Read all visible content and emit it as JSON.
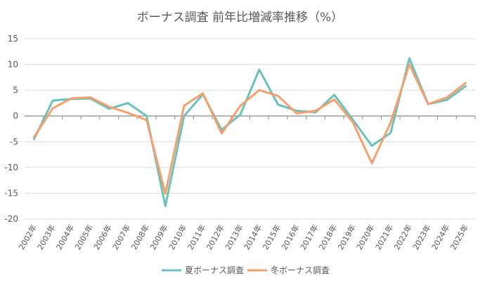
{
  "chart_data": {
    "type": "line",
    "title": "ボーナス調査 前年比増減率推移（%）",
    "xlabel": "",
    "ylabel": "",
    "categories": [
      "2002年",
      "2003年",
      "2004年",
      "2005年",
      "2006年",
      "2007年",
      "2008年",
      "2009年",
      "2010年",
      "2011年",
      "2012年",
      "2013年",
      "2014年",
      "2015年",
      "2016年",
      "2017年",
      "2018年",
      "2019年",
      "2020年",
      "2021年",
      "2022年",
      "2023年",
      "2024年",
      "2025年"
    ],
    "y_ticks": [
      "15",
      "10",
      "5",
      "0",
      "-5",
      "-10",
      "-15",
      "-20"
    ],
    "ylim": [
      -20,
      15
    ],
    "grid": true,
    "legend_position": "bottom",
    "series": [
      {
        "name": "夏ボーナス調査",
        "color": "#6cc0bb",
        "values": [
          -4.5,
          3.0,
          3.3,
          3.4,
          1.4,
          2.5,
          0.0,
          -17.5,
          0.0,
          4.2,
          -2.7,
          0.3,
          9.0,
          2.2,
          1.0,
          0.7,
          4.1,
          -0.8,
          -5.8,
          -3.3,
          11.2,
          2.3,
          3.1,
          5.8
        ]
      },
      {
        "name": "冬ボーナス調査",
        "color": "#f4a06e",
        "values": [
          -4.1,
          1.5,
          3.4,
          3.6,
          1.8,
          0.6,
          -0.8,
          -15.1,
          2.0,
          4.4,
          -3.4,
          2.0,
          5.0,
          3.9,
          0.5,
          1.0,
          3.2,
          -1.3,
          -9.2,
          -1.3,
          10.0,
          2.3,
          3.6,
          6.4
        ]
      }
    ]
  }
}
